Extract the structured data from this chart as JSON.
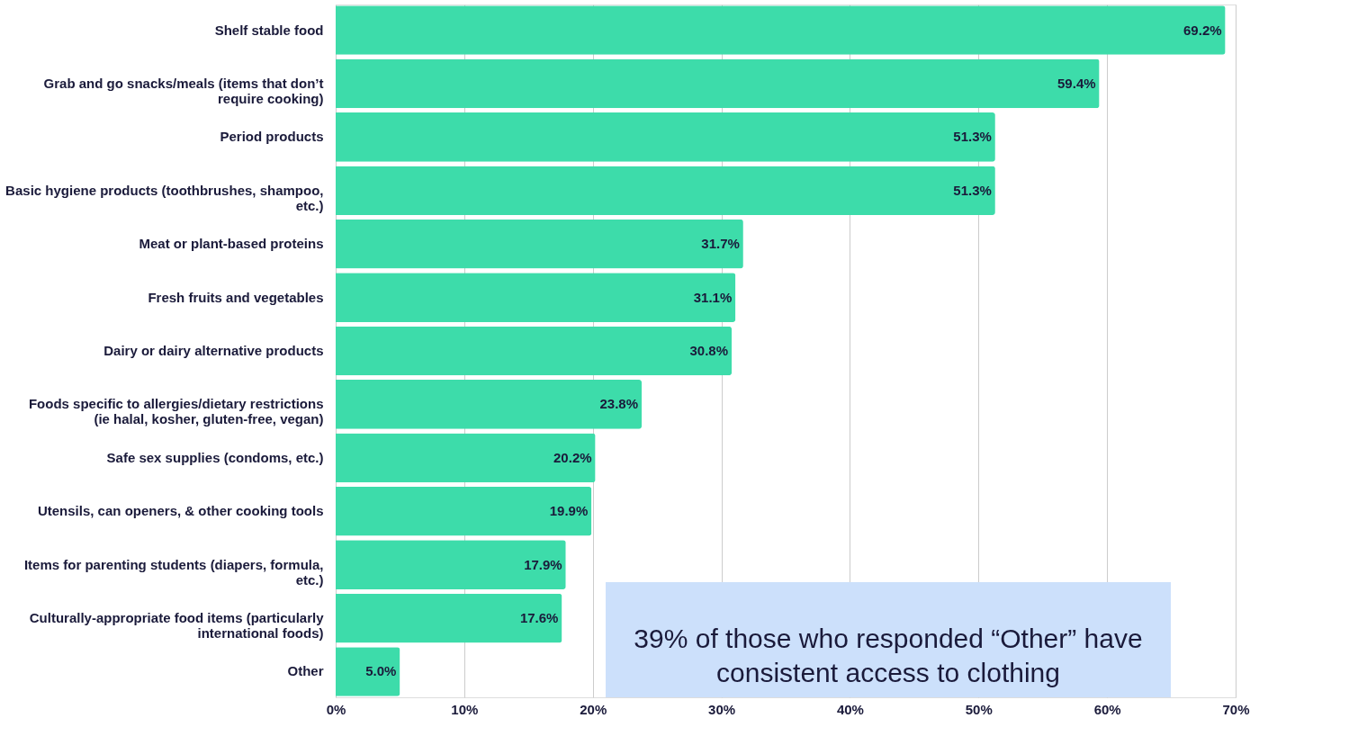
{
  "chart_data": {
    "type": "bar",
    "orientation": "horizontal",
    "categories": [
      "Shelf stable food",
      "Grab and go snacks/meals (items that don’t require cooking)",
      "Period products",
      "Basic hygiene products (toothbrushes, shampoo, etc.)",
      "Meat or plant-based proteins",
      "Fresh fruits and vegetables",
      "Dairy or dairy alternative products",
      "Foods specific to allergies/dietary restrictions (ie halal, kosher, gluten-free, vegan)",
      "Safe sex supplies (condoms, etc.)",
      "Utensils, can openers, & other cooking tools",
      "Items for parenting students (diapers, formula, etc.)",
      "Culturally-appropriate food items (particularly international foods)",
      "Other"
    ],
    "values": [
      69.2,
      59.4,
      51.3,
      51.3,
      31.7,
      31.1,
      30.8,
      23.8,
      20.2,
      19.9,
      17.9,
      17.6,
      5.0
    ],
    "value_labels": [
      "69.2%",
      "59.4%",
      "51.3%",
      "51.3%",
      "31.7%",
      "31.1%",
      "30.8%",
      "23.8%",
      "20.2%",
      "19.9%",
      "17.9%",
      "17.6%",
      "5.0%"
    ],
    "color": "#3ddcaa",
    "xlim": [
      0,
      70
    ],
    "xticks": [
      {
        "value": 0,
        "label": "0%"
      },
      {
        "value": 10,
        "label": "10%"
      },
      {
        "value": 20,
        "label": "20%"
      },
      {
        "value": 30,
        "label": "30%"
      },
      {
        "value": 40,
        "label": "40%"
      },
      {
        "value": 50,
        "label": "50%"
      },
      {
        "value": 60,
        "label": "60%"
      },
      {
        "value": 70,
        "label": "70%"
      }
    ],
    "grid": "x",
    "annotations": [
      "39% of those who responded “Other” have consistent access to clothing"
    ]
  }
}
